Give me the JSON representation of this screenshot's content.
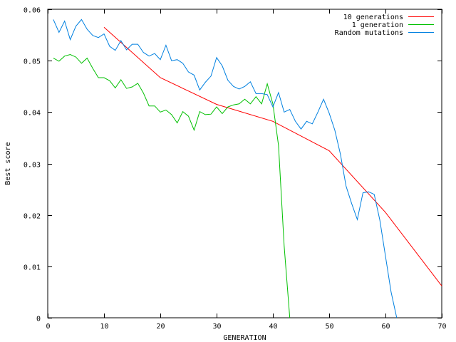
{
  "chart_data": {
    "type": "line",
    "title": "",
    "xlabel": "GENERATION",
    "ylabel": "Best score",
    "xlim": [
      0,
      70
    ],
    "ylim": [
      0,
      0.06
    ],
    "xticks": [
      0,
      10,
      20,
      30,
      40,
      50,
      60,
      70
    ],
    "yticks": [
      0,
      0.01,
      0.02,
      0.03,
      0.04,
      0.05,
      0.06
    ],
    "xtick_labels": [
      "0",
      "10",
      "20",
      "30",
      "40",
      "50",
      "60",
      "70"
    ],
    "ytick_labels": [
      "0",
      "0.01",
      "0.02",
      "0.03",
      "0.04",
      "0.05",
      "0.06"
    ],
    "grid": false,
    "legend_position": "top-right",
    "series": [
      {
        "name": "10 generations",
        "color": "#ff0000",
        "x": [
          10,
          20,
          30,
          40,
          50,
          60,
          70
        ],
        "y": [
          0.0565,
          0.0467,
          0.0415,
          0.0382,
          0.0325,
          0.0205,
          0.0062
        ]
      },
      {
        "name": "1 generation",
        "color": "#00c000",
        "x": [
          1,
          2,
          3,
          4,
          5,
          6,
          7,
          8,
          9,
          10,
          11,
          12,
          13,
          14,
          15,
          16,
          17,
          18,
          19,
          20,
          21,
          22,
          23,
          24,
          25,
          26,
          27,
          28,
          29,
          30,
          31,
          32,
          33,
          34,
          35,
          36,
          37,
          38,
          39,
          40,
          41,
          42,
          43
        ],
        "y": [
          0.0505,
          0.0499,
          0.0509,
          0.0512,
          0.0507,
          0.0495,
          0.0505,
          0.0485,
          0.0467,
          0.0467,
          0.0461,
          0.0447,
          0.0463,
          0.0446,
          0.0449,
          0.0456,
          0.0437,
          0.0412,
          0.0412,
          0.04,
          0.0404,
          0.0395,
          0.0379,
          0.0401,
          0.0392,
          0.0365,
          0.0401,
          0.0395,
          0.0396,
          0.041,
          0.0397,
          0.041,
          0.0414,
          0.0416,
          0.0425,
          0.0416,
          0.043,
          0.0416,
          0.0455,
          0.0416,
          0.0335,
          0.014,
          0.0
        ]
      },
      {
        "name": "Random mutations",
        "color": "#0080e0",
        "x": [
          1,
          2,
          3,
          4,
          5,
          6,
          7,
          8,
          9,
          10,
          11,
          12,
          13,
          14,
          15,
          16,
          17,
          18,
          19,
          20,
          21,
          22,
          23,
          24,
          25,
          26,
          27,
          28,
          29,
          30,
          31,
          32,
          33,
          34,
          35,
          36,
          37,
          38,
          39,
          40,
          41,
          42,
          43,
          44,
          45,
          46,
          47,
          48,
          49,
          50,
          51,
          52,
          53,
          54,
          55,
          56,
          57,
          58,
          59,
          60,
          61,
          62
        ],
        "y": [
          0.058,
          0.0555,
          0.0577,
          0.0541,
          0.0567,
          0.058,
          0.0561,
          0.0549,
          0.0545,
          0.0552,
          0.0528,
          0.052,
          0.0539,
          0.0521,
          0.0532,
          0.0532,
          0.0516,
          0.0509,
          0.0514,
          0.0502,
          0.053,
          0.05,
          0.0502,
          0.0495,
          0.0478,
          0.0472,
          0.0443,
          0.0458,
          0.047,
          0.0506,
          0.049,
          0.0462,
          0.045,
          0.0445,
          0.045,
          0.0459,
          0.0436,
          0.0436,
          0.0434,
          0.041,
          0.0438,
          0.04,
          0.0405,
          0.0382,
          0.0367,
          0.0382,
          0.0377,
          0.04,
          0.0425,
          0.0398,
          0.0365,
          0.0318,
          0.0256,
          0.0222,
          0.0191,
          0.0243,
          0.0245,
          0.024,
          0.019,
          0.012,
          0.005,
          0.0
        ]
      }
    ]
  }
}
